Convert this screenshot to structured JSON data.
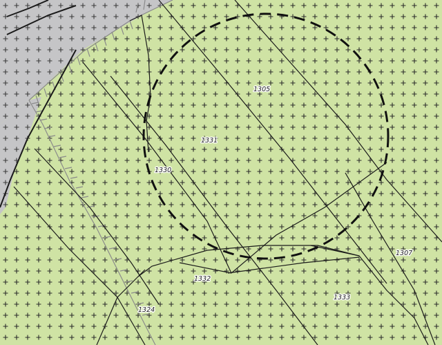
{
  "map": {
    "colors": {
      "parcel_fill": "#cfe3a4",
      "area_fill": "#c5c5c7",
      "grid_cross": "#2a2a2a",
      "line": "#1a1a1a",
      "boundary_gray": "#8a8a8a",
      "circle_stroke": "#111111"
    },
    "hatch_pattern": "plus-grid",
    "buffer_circle": {
      "style": "dashed"
    },
    "labels": [
      {
        "id": "1305",
        "text": "1305"
      },
      {
        "id": "1331",
        "text": "1331"
      },
      {
        "id": "1330",
        "text": "1330"
      },
      {
        "id": "1307",
        "text": "1307"
      },
      {
        "id": "1332",
        "text": "1332"
      },
      {
        "id": "1333",
        "text": "1333"
      },
      {
        "id": "1324",
        "text": "1324"
      }
    ]
  }
}
